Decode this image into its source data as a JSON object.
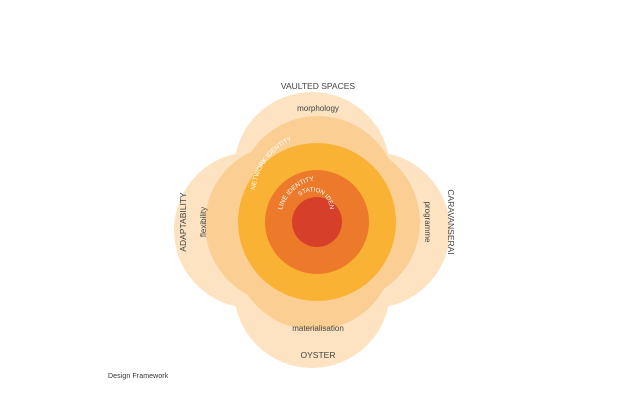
{
  "caption": "Design Framework",
  "colors": {
    "petal_outer": "#fde3c2",
    "petal_inner": "#fbcf94",
    "ring_network": "#f9b233",
    "ring_line": "#ec7a2a",
    "ring_station": "#d6402a",
    "outer_text": "#444444",
    "inner_text": "#ffffff"
  },
  "outer_labels": {
    "top": "VAULTED SPACES",
    "bottom": "OYSTER",
    "left": "ADAPTABILITY",
    "right": "CARAVANSERAI"
  },
  "petal_labels": {
    "top": "morphology",
    "bottom": "materialisation",
    "left": "flexibility",
    "right": "programme"
  },
  "ring_labels": {
    "network": "NETWORK IDENTITY",
    "line": "LINE IDENTITY",
    "station": "STATION IDENTITY"
  }
}
